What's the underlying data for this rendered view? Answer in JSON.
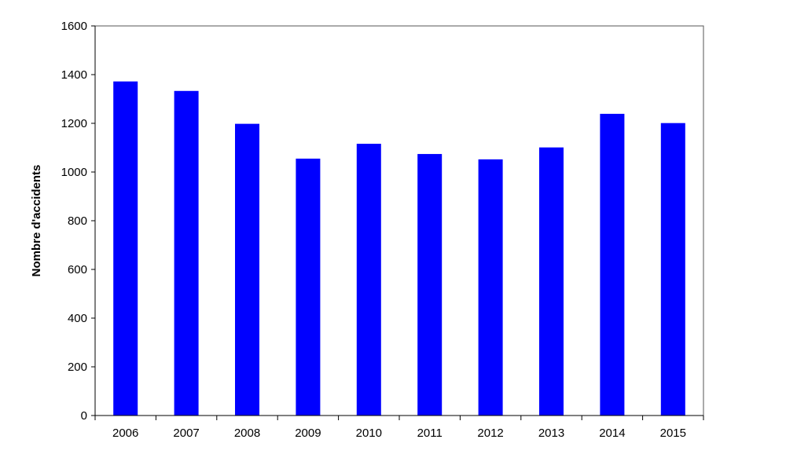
{
  "chart_data": {
    "type": "bar",
    "title": "",
    "xlabel": "",
    "ylabel": "Nombre d'accidents",
    "categories": [
      "2006",
      "2007",
      "2008",
      "2009",
      "2010",
      "2011",
      "2012",
      "2013",
      "2014",
      "2015"
    ],
    "values": [
      1372,
      1333,
      1198,
      1055,
      1116,
      1074,
      1052,
      1101,
      1239,
      1201
    ],
    "ylim": [
      0,
      1600
    ],
    "yticks": [
      "0",
      "200",
      "400",
      "600",
      "800",
      "1000",
      "1200",
      "1400",
      "1600"
    ],
    "grid": false,
    "legend": "none",
    "bar_color": "#0000ff"
  }
}
